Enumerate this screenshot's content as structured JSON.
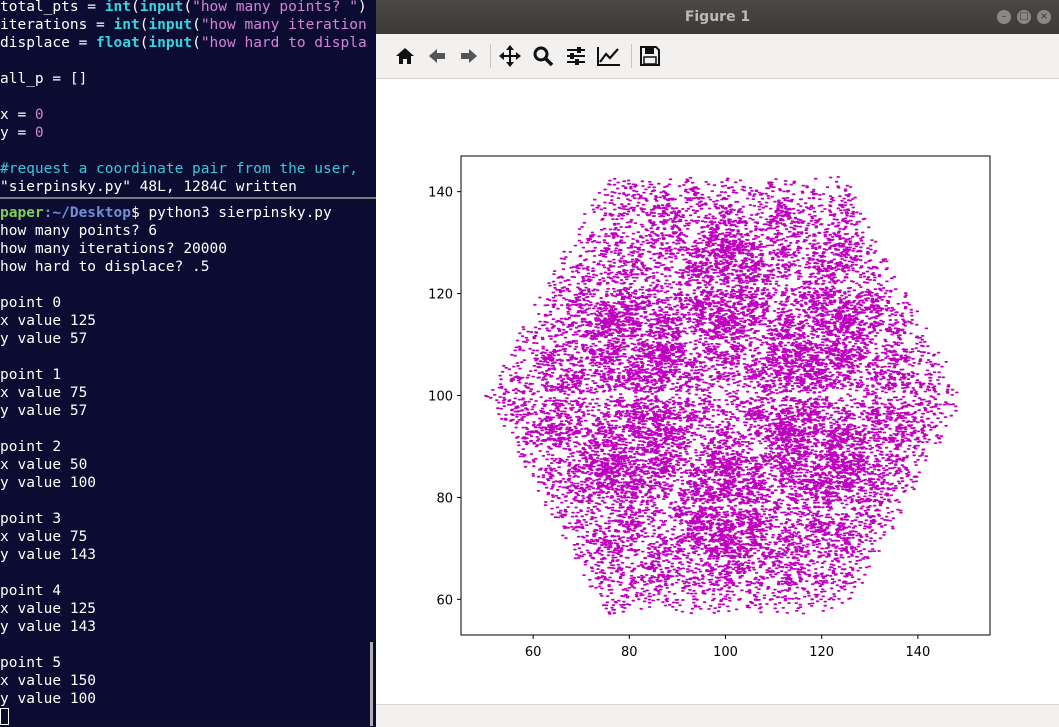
{
  "editor": {
    "lines": [
      {
        "parts": [
          {
            "t": "total_pts = ",
            "c": ""
          },
          {
            "t": "int",
            "c": "fn"
          },
          {
            "t": "(",
            "c": ""
          },
          {
            "t": "input",
            "c": "fn"
          },
          {
            "t": "(",
            "c": ""
          },
          {
            "t": "\"how many points? \"",
            "c": "str"
          },
          {
            "t": ")",
            "c": ""
          }
        ]
      },
      {
        "parts": [
          {
            "t": "iterations = ",
            "c": ""
          },
          {
            "t": "int",
            "c": "fn"
          },
          {
            "t": "(",
            "c": ""
          },
          {
            "t": "input",
            "c": "fn"
          },
          {
            "t": "(",
            "c": ""
          },
          {
            "t": "\"how many iteration",
            "c": "str"
          }
        ]
      },
      {
        "parts": [
          {
            "t": "displace = ",
            "c": ""
          },
          {
            "t": "float",
            "c": "fn"
          },
          {
            "t": "(",
            "c": ""
          },
          {
            "t": "input",
            "c": "fn"
          },
          {
            "t": "(",
            "c": ""
          },
          {
            "t": "\"how hard to displa",
            "c": "str"
          }
        ]
      },
      {
        "parts": []
      },
      {
        "parts": [
          {
            "t": "all_p = []",
            "c": ""
          }
        ]
      },
      {
        "parts": []
      },
      {
        "parts": [
          {
            "t": "x = ",
            "c": ""
          },
          {
            "t": "0",
            "c": "num"
          }
        ]
      },
      {
        "parts": [
          {
            "t": "y = ",
            "c": ""
          },
          {
            "t": "0",
            "c": "num"
          }
        ]
      },
      {
        "parts": []
      },
      {
        "parts": [
          {
            "t": "#request a coordinate pair from the user,",
            "c": "cm"
          }
        ]
      },
      {
        "parts": [
          {
            "t": "\"sierpinsky.py\" 48L, 1284C written",
            "c": ""
          }
        ]
      }
    ]
  },
  "shell": {
    "prompt_user": "paper",
    "prompt_path": ":~/Desktop",
    "prompt_symbol": "$ ",
    "command": "python3 sierpinsky.py",
    "lines": [
      "how many points? 6",
      "how many iterations? 20000",
      "how hard to displace? .5",
      "",
      "point 0",
      "x value 125",
      "y value 57",
      "",
      "point 1",
      "x value 75",
      "y value 57",
      "",
      "point 2",
      "x value 50",
      "y value 100",
      "",
      "point 3",
      "x value 75",
      "y value 143",
      "",
      "point 4",
      "x value 125",
      "y value 143",
      "",
      "point 5",
      "x value 150",
      "y value 100"
    ]
  },
  "window": {
    "title": "Figure 1",
    "toolbar": [
      "home-icon",
      "back-arrow-icon",
      "forward-arrow-icon",
      "pan-icon",
      "zoom-icon",
      "configure-subplots-icon",
      "edit-axis-icon",
      "save-icon"
    ]
  },
  "chart_data": {
    "type": "scatter",
    "title": "",
    "xlabel": "",
    "ylabel": "",
    "xlim": [
      45,
      155
    ],
    "ylim": [
      53,
      147
    ],
    "xticks": [
      60,
      80,
      100,
      120,
      140
    ],
    "yticks": [
      60,
      80,
      100,
      120,
      140
    ],
    "color": "#bf00bf",
    "grid": false,
    "vertices": [
      [
        125,
        57
      ],
      [
        75,
        57
      ],
      [
        50,
        100
      ],
      [
        75,
        143
      ],
      [
        125,
        143
      ],
      [
        150,
        100
      ]
    ],
    "ratio": 0.5,
    "iterations": 20000
  }
}
